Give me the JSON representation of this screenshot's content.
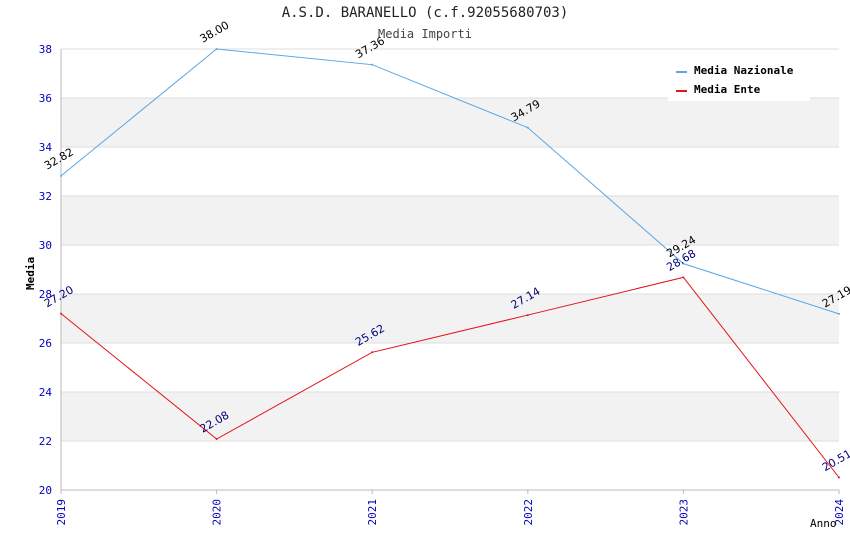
{
  "chart_data": {
    "type": "line",
    "title": "A.S.D. BARANELLO (c.f.92055680703)",
    "subtitle": "Media Importi",
    "xlabel": "Anno",
    "ylabel": "Media",
    "x": [
      "2019",
      "2020",
      "2021",
      "2022",
      "2023",
      "2024"
    ],
    "ylim": [
      20,
      38
    ],
    "yticks": [
      20,
      22,
      24,
      26,
      28,
      30,
      32,
      34,
      36,
      38
    ],
    "grid": true,
    "legend_position": "top-right",
    "series": [
      {
        "name": "Media Nazionale",
        "color": "#5aa6e6",
        "label_color": "#000000",
        "values": [
          32.82,
          38.0,
          37.36,
          34.79,
          29.24,
          27.19
        ],
        "labels": [
          "32.82",
          "38.00",
          "37.36",
          "34.79",
          "29.24",
          "27.19"
        ]
      },
      {
        "name": "Media Ente",
        "color": "#e3141b",
        "label_color": "#00007a",
        "values": [
          27.2,
          22.08,
          25.62,
          27.14,
          28.68,
          20.51
        ],
        "labels": [
          "27.20",
          "22.08",
          "25.62",
          "27.14",
          "28.68",
          "20.51"
        ]
      }
    ],
    "colors": {
      "grid_band": "#f2f2f2",
      "tick_text": "#0000c0",
      "axis": "#bbbbbb"
    }
  }
}
